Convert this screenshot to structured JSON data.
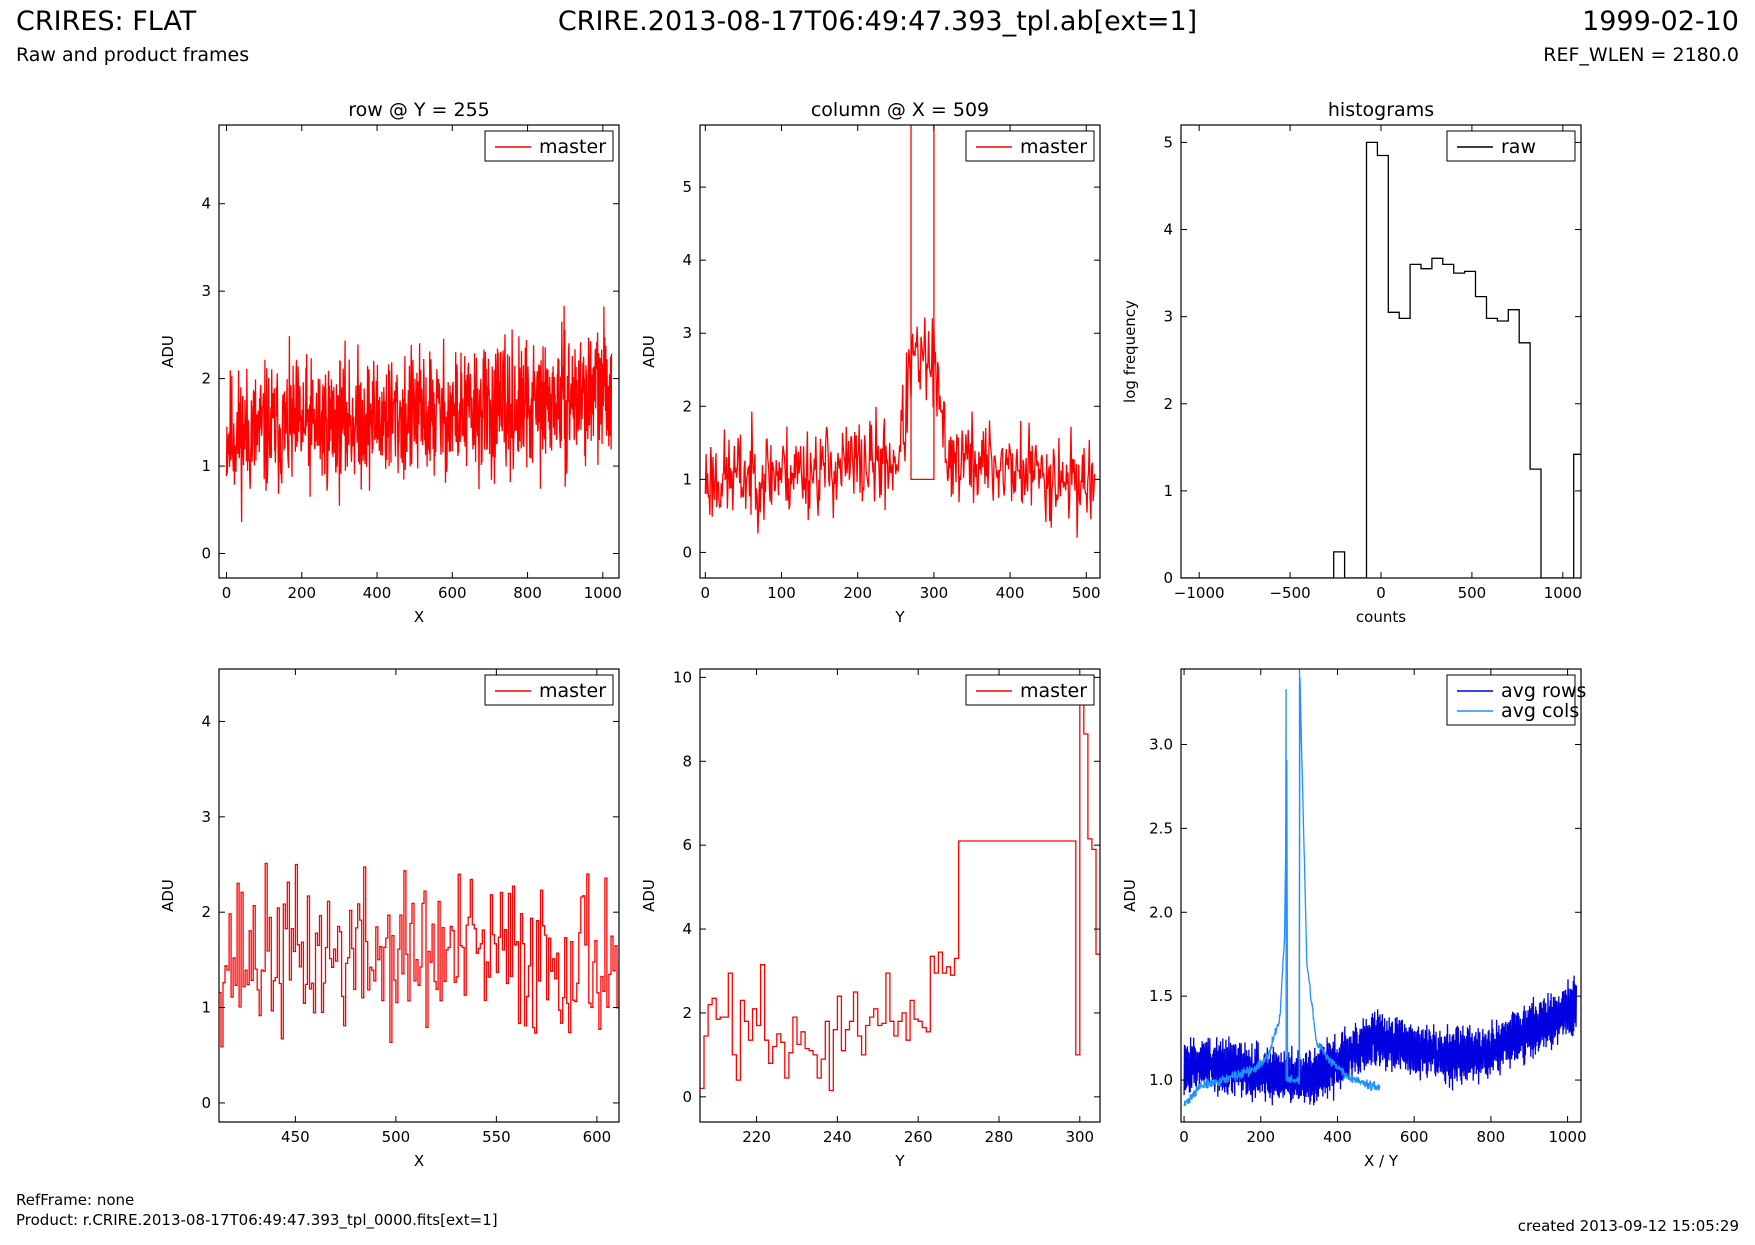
{
  "header": {
    "title": "CRIRES: FLAT",
    "subtitle": "Raw and product frames",
    "file": "CRIRE.2013-08-17T06:49:47.393_tpl.ab[ext=1]",
    "date": "1999-02-10",
    "ref_wlen": "REF_WLEN = 2180.0"
  },
  "footer": {
    "refframe": "RefFrame: none",
    "product": "Product: r.CRIRE.2013-08-17T06:49:47.393_tpl_0000.fits[ext=1]",
    "created": "created 2013-09-12 15:05:29"
  },
  "colors": {
    "master": "#ff0000",
    "raw": "#000000",
    "avg_rows": "#0000e0",
    "avg_cols": "#1e90ff"
  },
  "chart_data": [
    {
      "type": "line",
      "title": "row @ Y = 255",
      "xlabel": "X",
      "ylabel": "ADU",
      "xlim": [
        -20,
        1043
      ],
      "ylim": [
        -0.28,
        4.9
      ],
      "xticks": [
        0,
        200,
        400,
        600,
        800,
        1000
      ],
      "yticks": [
        0,
        1,
        2,
        3,
        4
      ],
      "legend_position": "top-right",
      "series": [
        {
          "name": "master",
          "color": "#ff0000",
          "style": "noise",
          "n": 1024,
          "x_start": 0,
          "x_step": 1,
          "trend_x": [
            0,
            200,
            400,
            600,
            800,
            1024
          ],
          "trend_y": [
            1.35,
            1.45,
            1.55,
            1.6,
            1.65,
            1.9
          ],
          "amplitude": 0.65,
          "min": 0.1,
          "max": 3.8,
          "seed": 11
        }
      ]
    },
    {
      "type": "line",
      "title": "column @ X = 509",
      "xlabel": "Y",
      "ylabel": "ADU",
      "xlim": [
        -7,
        518
      ],
      "ylim": [
        -0.35,
        5.85
      ],
      "xticks": [
        0,
        100,
        200,
        300,
        400,
        500
      ],
      "yticks": [
        0,
        1,
        2,
        3,
        4,
        5
      ],
      "legend_position": "top-right",
      "series": [
        {
          "name": "master",
          "color": "#ff0000",
          "style": "noise",
          "n": 512,
          "x_start": 0,
          "x_step": 1,
          "trend_x": [
            0,
            250,
            262,
            269,
            300,
            306,
            320,
            512
          ],
          "trend_y": [
            1.0,
            1.25,
            1.8,
            2.6,
            2.6,
            2.0,
            1.3,
            0.95
          ],
          "amplitude": 0.55,
          "min": 0.1,
          "max": 6.2,
          "seed": 23,
          "segments": [
            {
              "x": [
                269,
                270,
                270,
                300,
                300,
                301
              ],
              "y": [
                6.2,
                6.2,
                1.0,
                1.0,
                6.2,
                6.2
              ]
            }
          ]
        }
      ]
    },
    {
      "type": "line",
      "title": "histograms",
      "xlabel": "counts",
      "ylabel": "log frequency",
      "xlim": [
        -1100,
        1100
      ],
      "ylim": [
        0,
        5.2
      ],
      "xticks": [
        -1000,
        -500,
        0,
        500,
        1000
      ],
      "yticks": [
        0,
        1,
        2,
        3,
        4,
        5
      ],
      "legend_position": "top-right",
      "series": [
        {
          "name": "raw",
          "color": "#000000",
          "style": "steps",
          "bin_edges": [
            -1100,
            -1040,
            -980,
            -920,
            -860,
            -800,
            -740,
            -680,
            -620,
            -560,
            -500,
            -440,
            -380,
            -320,
            -260,
            -200,
            -140,
            -80,
            -20,
            40,
            100,
            160,
            220,
            280,
            340,
            400,
            460,
            520,
            580,
            640,
            700,
            760,
            820,
            880,
            940,
            1000,
            1060,
            1100
          ],
          "counts": [
            0,
            0,
            0,
            0,
            0,
            0,
            0,
            0,
            0,
            0,
            0,
            0,
            0,
            0,
            0.3,
            0,
            0,
            5.0,
            4.85,
            3.05,
            2.98,
            3.6,
            3.55,
            3.67,
            3.6,
            3.5,
            3.52,
            3.23,
            2.98,
            2.95,
            3.08,
            2.7,
            1.25,
            0,
            0,
            0,
            1.42
          ]
        }
      ]
    },
    {
      "type": "line",
      "title": "",
      "xlabel": "X",
      "ylabel": "ADU",
      "xlim": [
        412,
        611
      ],
      "ylim": [
        -0.2,
        4.55
      ],
      "xticks": [
        450,
        500,
        550,
        600
      ],
      "yticks": [
        0,
        1,
        2,
        3,
        4
      ],
      "legend_position": "top-right",
      "series": [
        {
          "name": "master",
          "color": "#ff0000",
          "style": "noise",
          "n": 200,
          "x_start": 412,
          "x_step": 1,
          "steps": true,
          "trend_x": [
            412,
            611
          ],
          "trend_y": [
            1.55,
            1.55
          ],
          "amplitude": 0.75,
          "min": 0.15,
          "max": 3.55,
          "seed": 37
        }
      ]
    },
    {
      "type": "line",
      "title": "",
      "xlabel": "Y",
      "ylabel": "ADU",
      "xlim": [
        206,
        305
      ],
      "ylim": [
        -0.6,
        10.2
      ],
      "xticks": [
        220,
        240,
        260,
        280,
        300
      ],
      "yticks": [
        0,
        2,
        4,
        6,
        8,
        10
      ],
      "legend_position": "top-right",
      "series": [
        {
          "name": "master",
          "color": "#ff0000",
          "style": "steps",
          "x": [
            206,
            207,
            208,
            209,
            210,
            211,
            212,
            213,
            214,
            215,
            216,
            217,
            218,
            219,
            220,
            221,
            222,
            223,
            224,
            225,
            226,
            227,
            228,
            229,
            230,
            231,
            232,
            233,
            234,
            235,
            236,
            237,
            238,
            239,
            240,
            241,
            242,
            243,
            244,
            245,
            246,
            247,
            248,
            249,
            250,
            251,
            252,
            253,
            254,
            255,
            256,
            257,
            258,
            259,
            260,
            261,
            262,
            263,
            264,
            265,
            266,
            267,
            268,
            269,
            270,
            299,
            300,
            301,
            302,
            303,
            304,
            305
          ],
          "y": [
            0.2,
            1.45,
            2.2,
            2.35,
            1.85,
            1.9,
            1.9,
            2.95,
            1.0,
            0.4,
            2.3,
            1.8,
            1.35,
            2.1,
            1.7,
            3.15,
            1.35,
            0.8,
            1.2,
            1.5,
            1.3,
            0.45,
            1.05,
            1.9,
            1.25,
            1.55,
            1.15,
            1.1,
            1.0,
            0.45,
            0.9,
            1.8,
            0.15,
            1.6,
            2.4,
            1.1,
            1.6,
            1.8,
            2.5,
            1.45,
            1.0,
            1.7,
            1.9,
            2.1,
            1.7,
            1.75,
            2.95,
            1.8,
            1.45,
            1.8,
            2.0,
            1.35,
            2.3,
            1.85,
            1.8,
            1.65,
            1.55,
            3.35,
            2.95,
            3.45,
            2.95,
            3.1,
            2.9,
            3.3,
            6.1,
            1.0,
            9.35,
            8.65,
            6.15,
            5.9,
            3.4,
            3.4
          ]
        }
      ]
    },
    {
      "type": "line",
      "title": "",
      "xlabel": "X / Y",
      "ylabel": "ADU",
      "xlim": [
        -8,
        1035
      ],
      "ylim": [
        0.75,
        3.45
      ],
      "xticks": [
        0,
        200,
        400,
        600,
        800,
        1000
      ],
      "yticks": [
        1.0,
        1.5,
        2.0,
        2.5,
        3.0
      ],
      "ytick_decimals": 1,
      "legend_position": "top-right",
      "series": [
        {
          "name": "avg rows",
          "color": "#0000e0",
          "style": "noise",
          "n": 1024,
          "x_start": 0,
          "x_step": 1,
          "oscillate": true,
          "trend_x": [
            0,
            100,
            200,
            300,
            400,
            500,
            600,
            700,
            800,
            900,
            1024
          ],
          "trend_y": [
            1.1,
            1.08,
            1.05,
            1.0,
            1.1,
            1.25,
            1.18,
            1.15,
            1.18,
            1.3,
            1.45
          ],
          "amplitude": 0.13,
          "min": 0.85,
          "max": 1.66,
          "seed": 53
        },
        {
          "name": "avg cols",
          "color": "#1e90ff",
          "style": "noise",
          "n": 512,
          "x_start": 0,
          "x_step": 1,
          "oscillate": false,
          "trend_x": [
            0,
            40,
            100,
            180,
            220,
            250,
            262,
            268,
            270,
            300,
            302,
            320,
            345,
            380,
            430,
            512
          ],
          "trend_y": [
            0.85,
            0.96,
            1.0,
            1.06,
            1.14,
            1.38,
            1.85,
            2.9,
            1.0,
            1.0,
            3.4,
            1.7,
            1.22,
            1.12,
            1.02,
            0.95
          ],
          "amplitude": 0.025,
          "min": 0.8,
          "max": 3.45,
          "seed": 71,
          "segments": [
            {
              "x": [
                265,
                266,
                266,
                270,
                270,
                301,
                301,
                302
              ],
              "y": [
                2.4,
                3.33,
                1.0,
                1.0,
                1.0,
                1.0,
                3.45,
                3.0
              ]
            }
          ]
        }
      ]
    }
  ]
}
